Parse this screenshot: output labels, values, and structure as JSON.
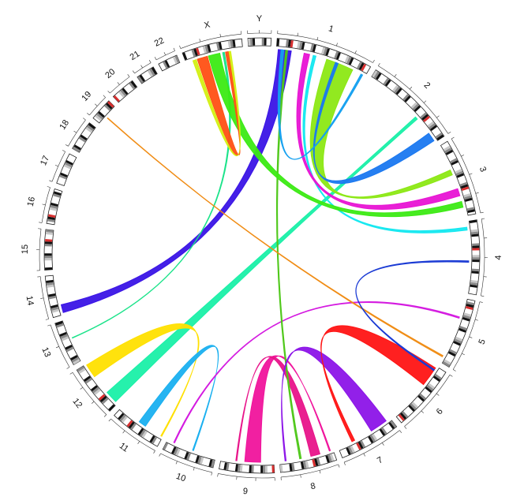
{
  "diagram": {
    "type": "circos-chromosome-link-plot",
    "chromosomes": [
      {
        "name": "1",
        "size": 249
      },
      {
        "name": "2",
        "size": 243
      },
      {
        "name": "3",
        "size": 198
      },
      {
        "name": "4",
        "size": 191
      },
      {
        "name": "5",
        "size": 181
      },
      {
        "name": "6",
        "size": 171
      },
      {
        "name": "7",
        "size": 159
      },
      {
        "name": "8",
        "size": 146
      },
      {
        "name": "9",
        "size": 141
      },
      {
        "name": "10",
        "size": 136
      },
      {
        "name": "11",
        "size": 135
      },
      {
        "name": "12",
        "size": 134
      },
      {
        "name": "13",
        "size": 115
      },
      {
        "name": "14",
        "size": 107
      },
      {
        "name": "15",
        "size": 103
      },
      {
        "name": "16",
        "size": 90
      },
      {
        "name": "17",
        "size": 81
      },
      {
        "name": "18",
        "size": 78
      },
      {
        "name": "19",
        "size": 59
      },
      {
        "name": "20",
        "size": 63
      },
      {
        "name": "21",
        "size": 48
      },
      {
        "name": "22",
        "size": 51
      },
      {
        "name": "X",
        "size": 155
      },
      {
        "name": "Y",
        "size": 59
      }
    ],
    "links": [
      {
        "from": [
          "14",
          0.05,
          0.25
        ],
        "to": [
          "1",
          0.02,
          0.16
        ],
        "color": "#3a14e6"
      },
      {
        "from": [
          "13",
          0.55,
          0.56
        ],
        "to": [
          "X",
          0.65,
          0.68
        ],
        "color": "#1be38a"
      },
      {
        "from": [
          "12",
          0.05,
          0.3
        ],
        "to": [
          "2",
          0.65,
          0.68
        ],
        "color": "#1af0a8"
      },
      {
        "from": [
          "12",
          0.7,
          0.98
        ],
        "to": [
          "11",
          0.02,
          0.04
        ],
        "color": "#ffe000"
      },
      {
        "from": [
          "11",
          0.4,
          0.55
        ],
        "to": [
          "10",
          0.45,
          0.47
        ],
        "color": "#1ab0f0"
      },
      {
        "from": [
          "10",
          0.85,
          0.87
        ],
        "to": [
          "5",
          0.28,
          0.3
        ],
        "color": "#d41ae0"
      },
      {
        "from": [
          "9",
          0.25,
          0.55
        ],
        "to": [
          "8",
          0.05,
          0.07
        ],
        "color": "#f0149c"
      },
      {
        "from": [
          "8",
          0.25,
          0.42
        ],
        "to": [
          "9",
          0.7,
          0.72
        ],
        "color": "#e8148a"
      },
      {
        "from": [
          "8",
          0.6,
          0.63
        ],
        "to": [
          "1",
          0.1,
          0.12
        ],
        "color": "#4fc81a"
      },
      {
        "from": [
          "7",
          0.08,
          0.38
        ],
        "to": [
          "8",
          0.88,
          0.9
        ],
        "color": "#8c14e8"
      },
      {
        "from": [
          "6",
          0.03,
          0.35
        ],
        "to": [
          "7",
          0.7,
          0.75
        ],
        "color": "#ff1414"
      },
      {
        "from": [
          "5",
          0.9,
          0.92
        ],
        "to": [
          "19",
          0.4,
          0.42
        ],
        "color": "#f08c14"
      },
      {
        "from": [
          "4",
          0.55,
          0.57
        ],
        "to": [
          "6",
          0.06,
          0.08
        ],
        "color": "#1a3ad4"
      },
      {
        "from": [
          "4",
          0.08,
          0.12
        ],
        "to": [
          "1",
          0.4,
          0.43
        ],
        "color": "#14e8f0"
      },
      {
        "from": [
          "3",
          0.8,
          0.88
        ],
        "to": [
          "X",
          0.4,
          0.6
        ],
        "color": "#3cea14"
      },
      {
        "from": [
          "3",
          0.62,
          0.72
        ],
        "to": [
          "1",
          0.3,
          0.36
        ],
        "color": "#e814d4"
      },
      {
        "from": [
          "3",
          0.35,
          0.42
        ],
        "to": [
          "1",
          0.55,
          0.85
        ],
        "color": "#8ce814"
      },
      {
        "from": [
          "2",
          0.88,
          0.98
        ],
        "to": [
          "1",
          0.65,
          0.68
        ],
        "color": "#1a78f0"
      },
      {
        "from": [
          "X",
          0.2,
          0.38
        ],
        "to": [
          "X",
          0.7,
          0.75
        ],
        "color": "#ff5014"
      },
      {
        "from": [
          "X",
          0.12,
          0.18
        ],
        "to": [
          "X",
          0.76,
          0.79
        ],
        "color": "#d4f014"
      },
      {
        "from": [
          "1",
          0.05,
          0.08
        ],
        "to": [
          "1",
          0.95,
          0.97
        ],
        "color": "#14a0f0"
      }
    ]
  }
}
